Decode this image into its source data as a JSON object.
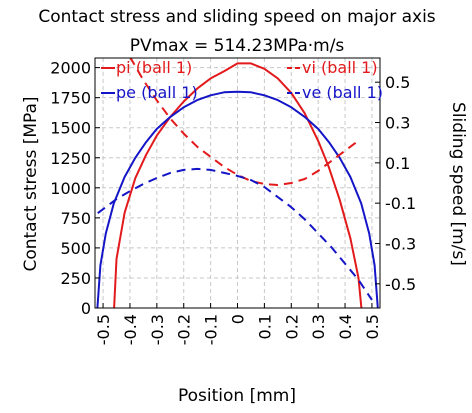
{
  "chart_data": {
    "type": "line",
    "title": "Contact stress and sliding speed on major axis",
    "subtitle": "PVmax = 514.23MPa·m/s",
    "xlabel": "Position [mm]",
    "ylabel_left": "Contact stress [MPa]",
    "ylabel_right": "Sliding speed [m/s]",
    "xlim": [
      -0.53,
      0.53
    ],
    "ylim_left": [
      0,
      2080
    ],
    "ylim_right": [
      -0.62,
      0.62
    ],
    "x_ticks": [
      -0.5,
      -0.4,
      -0.3,
      -0.2,
      -0.1,
      0,
      0.1,
      0.2,
      0.3,
      0.4,
      0.5
    ],
    "x_tick_labels": [
      "-0.5",
      "-0.4",
      "-0.3",
      "-0.2",
      "-0.1",
      "0",
      "0.1",
      "0.2",
      "0.3",
      "0.4",
      "0.5"
    ],
    "y_left_ticks": [
      0,
      250,
      500,
      750,
      1000,
      1250,
      1500,
      1750,
      2000
    ],
    "y_left_tick_labels": [
      "0",
      "250",
      "500",
      "750",
      "1000",
      "1250",
      "1500",
      "1750",
      "2000"
    ],
    "y_right_ticks": [
      -0.5,
      -0.3,
      -0.1,
      0.1,
      0.3,
      0.5
    ],
    "y_right_tick_labels": [
      "-0.5",
      "-0.3",
      "-0.1",
      "0.1",
      "0.3",
      "0.5"
    ],
    "grid": true,
    "legend_placement": "top, over plot",
    "series": [
      {
        "name": "pi (ball 1)",
        "axis": "left",
        "color": "#e31a1c",
        "dash": false,
        "x": [
          -0.459,
          -0.45,
          -0.42,
          -0.38,
          -0.34,
          -0.3,
          -0.25,
          -0.2,
          -0.15,
          -0.1,
          -0.05,
          0,
          0.05,
          0.1,
          0.15,
          0.2,
          0.25,
          0.3,
          0.34,
          0.38,
          0.42,
          0.45,
          0.461
        ],
        "y": [
          0,
          408,
          792,
          1080,
          1275,
          1434,
          1590,
          1718,
          1825,
          1910,
          1970,
          2035,
          2035,
          1990,
          1910,
          1790,
          1620,
          1390,
          1170,
          900,
          580,
          250,
          0
        ]
      },
      {
        "name": "pe (ball 1)",
        "axis": "left",
        "color": "#1515c8",
        "dash": false,
        "x": [
          -0.521,
          -0.51,
          -0.49,
          -0.46,
          -0.42,
          -0.38,
          -0.34,
          -0.3,
          -0.25,
          -0.2,
          -0.15,
          -0.1,
          -0.05,
          0,
          0.05,
          0.1,
          0.15,
          0.2,
          0.25,
          0.3,
          0.34,
          0.38,
          0.42,
          0.46,
          0.49,
          0.51,
          0.522
        ],
        "y": [
          0,
          355,
          620,
          870,
          1090,
          1250,
          1380,
          1490,
          1590,
          1670,
          1730,
          1770,
          1795,
          1800,
          1795,
          1770,
          1730,
          1670,
          1590,
          1490,
          1380,
          1250,
          1090,
          870,
          620,
          355,
          0
        ]
      },
      {
        "name": "vi (ball 1)",
        "axis": "right",
        "color": "#e31a1c",
        "dash": true,
        "x": [
          -0.4,
          -0.35,
          -0.3,
          -0.25,
          -0.2,
          -0.15,
          -0.1,
          -0.05,
          0,
          0.05,
          0.1,
          0.15,
          0.2,
          0.25,
          0.3,
          0.35,
          0.4,
          0.45
        ],
        "y": [
          0.625,
          0.51,
          0.41,
          0.32,
          0.245,
          0.18,
          0.13,
          0.08,
          0.04,
          0.01,
          -0.005,
          -0.01,
          0.0,
          0.02,
          0.06,
          0.11,
          0.16,
          0.21
        ]
      },
      {
        "name": "ve (ball 1)",
        "axis": "right",
        "color": "#1515c8",
        "dash": true,
        "x": [
          -0.52,
          -0.45,
          -0.4,
          -0.35,
          -0.3,
          -0.25,
          -0.2,
          -0.15,
          -0.1,
          -0.05,
          0,
          0.05,
          0.1,
          0.15,
          0.2,
          0.25,
          0.3,
          0.35,
          0.4,
          0.45,
          0.5
        ],
        "y": [
          -0.15,
          -0.08,
          -0.04,
          -0.005,
          0.025,
          0.05,
          0.065,
          0.07,
          0.065,
          0.05,
          0.035,
          0.015,
          -0.02,
          -0.07,
          -0.12,
          -0.18,
          -0.25,
          -0.32,
          -0.4,
          -0.48,
          -0.58
        ]
      }
    ]
  }
}
